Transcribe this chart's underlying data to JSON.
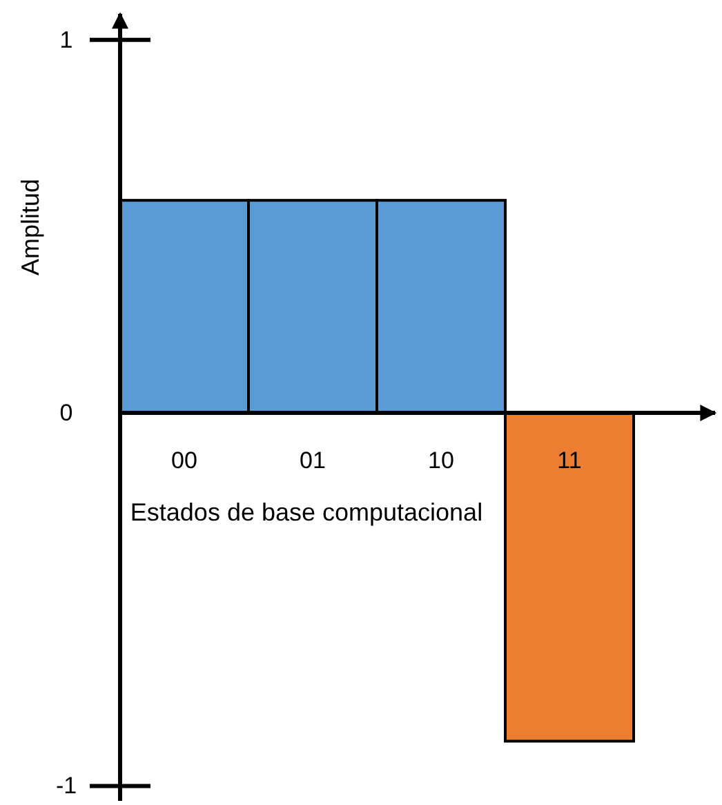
{
  "chart_data": {
    "type": "bar",
    "xlabel": "Estados de base computacional",
    "ylabel": "Amplitud",
    "categories": [
      "00",
      "01",
      "10",
      "11"
    ],
    "values": [
      0.57,
      0.57,
      0.57,
      -0.88
    ],
    "colors": [
      "#5b9bd5",
      "#5b9bd5",
      "#5b9bd5",
      "#ed7d31"
    ],
    "ylim": [
      -1.04,
      1.07
    ],
    "yticks": [
      -1,
      0,
      1
    ],
    "grid": false,
    "legend": false
  }
}
